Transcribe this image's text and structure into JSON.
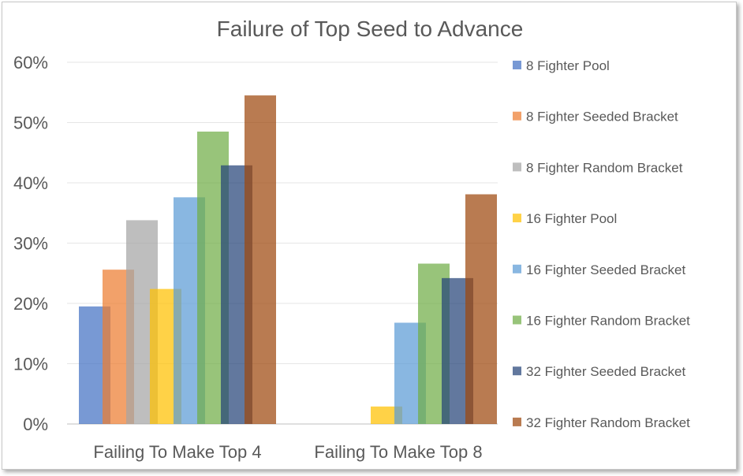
{
  "chart_data": {
    "type": "bar",
    "title": "Failure of Top Seed to Advance",
    "xlabel": "",
    "ylabel": "",
    "categories": [
      "Failing To Make Top 4",
      "Failing To Make Top 8"
    ],
    "ylim": [
      0,
      60
    ],
    "y_ticks": [
      "0%",
      "10%",
      "20%",
      "30%",
      "40%",
      "50%",
      "60%"
    ],
    "grid": true,
    "legend_position": "right",
    "series": [
      {
        "name": "8 Fighter Pool",
        "color": "#4472c4",
        "values": [
          19.5,
          null
        ]
      },
      {
        "name": "8 Fighter Seeded Bracket",
        "color": "#ed7d31",
        "values": [
          25.6,
          null
        ]
      },
      {
        "name": "8 Fighter Random Bracket",
        "color": "#a5a5a5",
        "values": [
          33.8,
          null
        ]
      },
      {
        "name": "16 Fighter Pool",
        "color": "#ffc000",
        "values": [
          22.4,
          2.9
        ]
      },
      {
        "name": "16 Fighter Seeded Bracket",
        "color": "#5b9bd5",
        "values": [
          37.6,
          16.8
        ]
      },
      {
        "name": "16 Fighter Random Bracket",
        "color": "#70ad47",
        "values": [
          48.5,
          26.6
        ]
      },
      {
        "name": "32 Fighter Seeded Bracket",
        "color": "#264478",
        "values": [
          42.9,
          24.2
        ]
      },
      {
        "name": "32 Fighter Random Bracket",
        "color": "#9e480e",
        "values": [
          54.5,
          38.1
        ]
      }
    ]
  }
}
